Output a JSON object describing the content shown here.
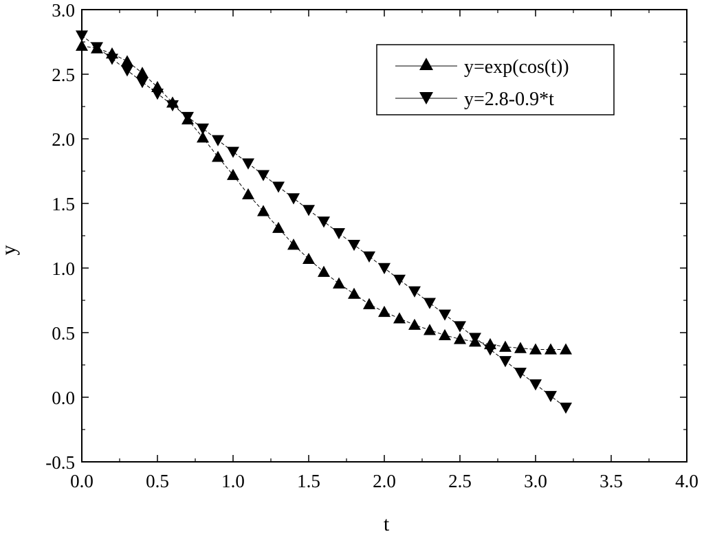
{
  "chart_data": {
    "type": "line",
    "title": "",
    "xlabel": "t",
    "ylabel": "y",
    "xlim": [
      0.0,
      4.0
    ],
    "ylim": [
      -0.5,
      3.0
    ],
    "xticks": [
      "0.0",
      "0.5",
      "1.0",
      "1.5",
      "2.0",
      "2.5",
      "3.0",
      "3.5",
      "4.0"
    ],
    "yticks": [
      "-0.5",
      "0.0",
      "0.5",
      "1.0",
      "1.5",
      "2.0",
      "2.5",
      "3.0"
    ],
    "grid": false,
    "legend_position": "top-right",
    "x": [
      0.0,
      0.1,
      0.2,
      0.3,
      0.4,
      0.5,
      0.6,
      0.7,
      0.8,
      0.9,
      1.0,
      1.1,
      1.2,
      1.3,
      1.4,
      1.5,
      1.6,
      1.7,
      1.8,
      1.9,
      2.0,
      2.1,
      2.2,
      2.3,
      2.4,
      2.5,
      2.6,
      2.7,
      2.8,
      2.9,
      3.0,
      3.1,
      3.2
    ],
    "series": [
      {
        "name": "y=exp(cos(t))",
        "marker": "triangle-up",
        "values": [
          2.72,
          2.7,
          2.66,
          2.6,
          2.51,
          2.4,
          2.28,
          2.15,
          2.01,
          1.86,
          1.72,
          1.57,
          1.44,
          1.31,
          1.18,
          1.07,
          0.97,
          0.88,
          0.8,
          0.72,
          0.66,
          0.61,
          0.56,
          0.52,
          0.48,
          0.45,
          0.43,
          0.41,
          0.39,
          0.38,
          0.37,
          0.37,
          0.37
        ]
      },
      {
        "name": "y=2.8-0.9*t",
        "marker": "triangle-down",
        "values": [
          2.8,
          2.71,
          2.62,
          2.53,
          2.44,
          2.35,
          2.26,
          2.17,
          2.08,
          1.99,
          1.9,
          1.81,
          1.72,
          1.63,
          1.54,
          1.45,
          1.36,
          1.27,
          1.18,
          1.09,
          1.0,
          0.91,
          0.82,
          0.73,
          0.64,
          0.55,
          0.46,
          0.37,
          0.28,
          0.19,
          0.1,
          0.01,
          -0.08
        ]
      }
    ]
  }
}
